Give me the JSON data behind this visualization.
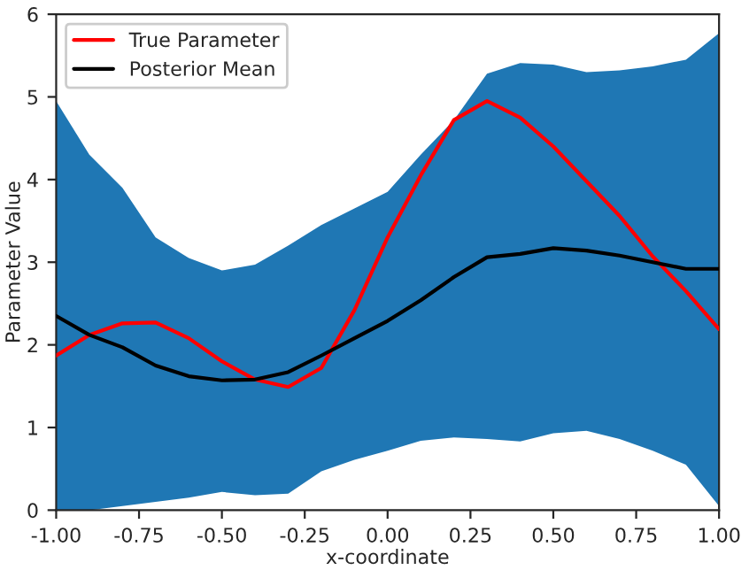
{
  "chart_data": {
    "type": "line",
    "xlabel": "x-coordinate",
    "ylabel": "Parameter Value",
    "x": [
      -1.0,
      -0.9,
      -0.8,
      -0.7,
      -0.6,
      -0.5,
      -0.4,
      -0.3,
      -0.2,
      -0.1,
      0.0,
      0.1,
      0.2,
      0.3,
      0.4,
      0.5,
      0.6,
      0.7,
      0.8,
      0.9,
      1.0
    ],
    "series": [
      {
        "name": "True Parameter",
        "color": "#ff0000",
        "values": [
          1.87,
          2.12,
          2.26,
          2.27,
          2.08,
          1.8,
          1.58,
          1.49,
          1.72,
          2.42,
          3.3,
          4.05,
          4.72,
          4.95,
          4.75,
          4.4,
          3.98,
          3.56,
          3.07,
          2.65,
          2.19
        ]
      },
      {
        "name": "Posterior Mean",
        "color": "#000000",
        "values": [
          2.35,
          2.12,
          1.97,
          1.75,
          1.62,
          1.57,
          1.58,
          1.67,
          1.87,
          2.08,
          2.29,
          2.54,
          2.82,
          3.06,
          3.1,
          3.17,
          3.14,
          3.08,
          3.0,
          2.92,
          2.92
        ],
        "lower": [
          0.0,
          0.0,
          0.05,
          0.1,
          0.15,
          0.22,
          0.18,
          0.2,
          0.47,
          0.61,
          0.72,
          0.84,
          0.88,
          0.86,
          0.83,
          0.93,
          0.96,
          0.86,
          0.72,
          0.55,
          0.05
        ],
        "upper": [
          4.95,
          4.3,
          3.9,
          3.3,
          3.05,
          2.9,
          2.97,
          3.2,
          3.45,
          3.65,
          3.85,
          4.3,
          4.72,
          5.28,
          5.41,
          5.39,
          5.3,
          5.32,
          5.37,
          5.45,
          5.77
        ]
      }
    ],
    "xlim": [
      -1.0,
      1.0
    ],
    "xticks": [
      {
        "value": -1.0,
        "label": "-1.00"
      },
      {
        "value": -0.75,
        "label": "-0.75"
      },
      {
        "value": -0.5,
        "label": "-0.50"
      },
      {
        "value": -0.25,
        "label": "-0.25"
      },
      {
        "value": 0.0,
        "label": "0.00"
      },
      {
        "value": 0.25,
        "label": "0.25"
      },
      {
        "value": 0.5,
        "label": "0.50"
      },
      {
        "value": 0.75,
        "label": "0.75"
      },
      {
        "value": 1.0,
        "label": "1.00"
      }
    ],
    "ylim": [
      0,
      6
    ],
    "yticks": [
      0,
      1,
      2,
      3,
      4,
      5,
      6
    ],
    "grid": false,
    "legend": "top left",
    "line_style": "solid",
    "marker": "none"
  }
}
